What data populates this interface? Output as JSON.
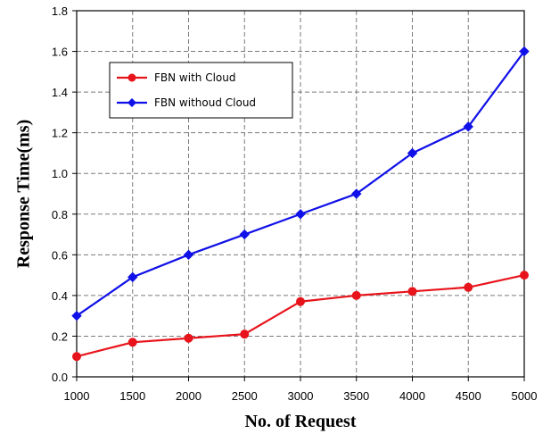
{
  "chart_data": {
    "type": "line",
    "title": "",
    "xlabel": "No. of Request",
    "ylabel": "Response Time(ms)",
    "x": [
      1000,
      1500,
      2000,
      2500,
      3000,
      3500,
      4000,
      4500,
      5000
    ],
    "xlim": [
      1000,
      5000
    ],
    "ylim": [
      0.0,
      1.8
    ],
    "yticks": [
      0.0,
      0.2,
      0.4,
      0.6,
      0.8,
      1.0,
      1.2,
      1.4,
      1.6,
      1.8
    ],
    "ytick_labels": [
      "0.0",
      "0.2",
      "0.4",
      "0.6",
      "0.8",
      "1.0",
      "1.2",
      "1.4",
      "1.6",
      "1.8"
    ],
    "xticks": [
      1000,
      1500,
      2000,
      2500,
      3000,
      3500,
      4000,
      4500,
      5000
    ],
    "xtick_labels": [
      "1000",
      "1500",
      "2000",
      "2500",
      "3000",
      "3500",
      "4000",
      "4500",
      "5000"
    ],
    "grid": true,
    "grid_style": "dashed",
    "legend_position": "top-left",
    "series": [
      {
        "name": "FBN with Cloud",
        "color": "#e8141b",
        "marker": "circle",
        "values": [
          0.1,
          0.17,
          0.19,
          0.21,
          0.37,
          0.4,
          0.42,
          0.44,
          0.5
        ]
      },
      {
        "name": "FBN withoud Cloud",
        "color": "#1010e8",
        "marker": "diamond",
        "values": [
          0.3,
          0.49,
          0.6,
          0.7,
          0.8,
          0.9,
          1.1,
          1.23,
          1.6
        ]
      }
    ]
  }
}
